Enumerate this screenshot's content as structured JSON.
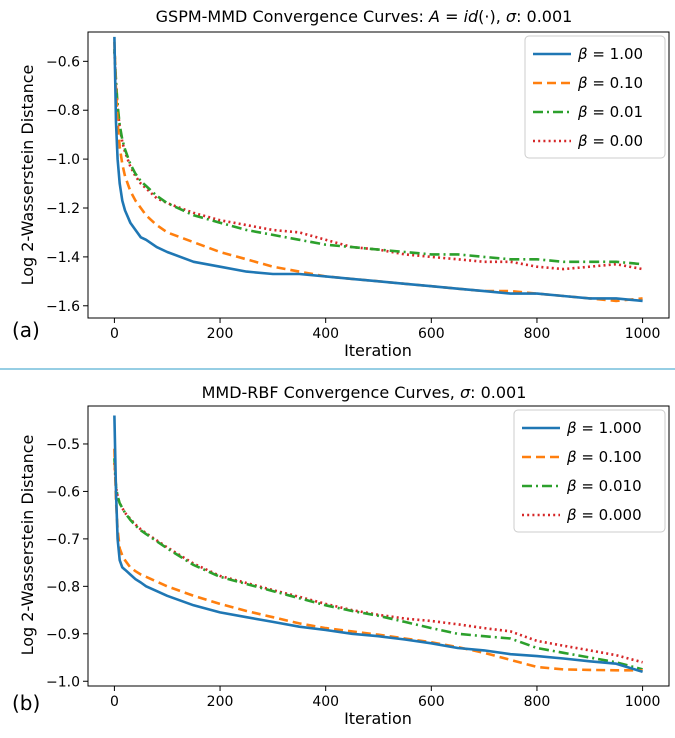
{
  "chart_data": [
    {
      "type": "line",
      "panel_label": "(a)",
      "title": "GSPM-MMD Convergence Curves: A = id(·), σ: 0.001",
      "title_parts": {
        "prefix": "GSPM-MMD Convergence Curves: ",
        "A": "A",
        "eq": " = ",
        "id": "id",
        "arg": "(·), ",
        "sigma": "σ",
        "suffix": ": 0.001"
      },
      "xlabel": "Iteration",
      "ylabel": "Log 2-Wasserstein Distance",
      "xlim": [
        -50,
        1050
      ],
      "ylim": [
        -1.65,
        -0.48
      ],
      "xticks": [
        0,
        200,
        400,
        600,
        800,
        1000
      ],
      "xtick_labels": [
        "0",
        "200",
        "400",
        "600",
        "800",
        "1000"
      ],
      "yticks": [
        -1.6,
        -1.4,
        -1.2,
        -1.0,
        -0.8,
        -0.6
      ],
      "ytick_labels": [
        "−1.6",
        "−1.4",
        "−1.2",
        "−1.0",
        "−0.8",
        "−0.6"
      ],
      "grid": false,
      "legend_position": "top-right",
      "series": [
        {
          "name": "β = 1.00",
          "legend_symbol": "β",
          "legend_value": "= 1.00",
          "color": "#1f77b4",
          "style": "solid",
          "x": [
            0,
            3,
            6,
            10,
            15,
            20,
            30,
            40,
            50,
            60,
            80,
            100,
            150,
            200,
            250,
            300,
            350,
            400,
            450,
            500,
            550,
            600,
            650,
            700,
            750,
            800,
            850,
            900,
            950,
            1000
          ],
          "y": [
            -0.5,
            -0.85,
            -1.0,
            -1.1,
            -1.17,
            -1.21,
            -1.26,
            -1.29,
            -1.32,
            -1.33,
            -1.36,
            -1.38,
            -1.42,
            -1.44,
            -1.46,
            -1.47,
            -1.47,
            -1.48,
            -1.49,
            -1.5,
            -1.51,
            -1.52,
            -1.53,
            -1.54,
            -1.55,
            -1.55,
            -1.56,
            -1.57,
            -1.57,
            -1.58
          ]
        },
        {
          "name": "β = 0.10",
          "legend_symbol": "β",
          "legend_value": "= 0.10",
          "color": "#ff7f0e",
          "style": "dashed",
          "x": [
            0,
            3,
            6,
            10,
            15,
            20,
            30,
            40,
            50,
            60,
            80,
            100,
            150,
            200,
            250,
            300,
            350,
            400,
            450,
            500,
            550,
            600,
            650,
            700,
            750,
            800,
            850,
            900,
            950,
            1000
          ],
          "y": [
            -0.52,
            -0.72,
            -0.85,
            -0.95,
            -1.02,
            -1.07,
            -1.13,
            -1.17,
            -1.2,
            -1.23,
            -1.27,
            -1.3,
            -1.34,
            -1.38,
            -1.41,
            -1.44,
            -1.46,
            -1.48,
            -1.49,
            -1.5,
            -1.51,
            -1.52,
            -1.53,
            -1.54,
            -1.54,
            -1.55,
            -1.56,
            -1.57,
            -1.58,
            -1.57
          ]
        },
        {
          "name": "β = 0.01",
          "legend_symbol": "β",
          "legend_value": "= 0.01",
          "color": "#2ca02c",
          "style": "dashdot",
          "x": [
            0,
            3,
            6,
            10,
            15,
            20,
            30,
            40,
            50,
            60,
            80,
            100,
            150,
            200,
            250,
            300,
            350,
            400,
            450,
            500,
            550,
            600,
            650,
            700,
            750,
            800,
            850,
            900,
            950,
            1000
          ],
          "y": [
            -0.55,
            -0.68,
            -0.78,
            -0.86,
            -0.92,
            -0.96,
            -1.02,
            -1.06,
            -1.09,
            -1.11,
            -1.15,
            -1.18,
            -1.23,
            -1.26,
            -1.29,
            -1.31,
            -1.33,
            -1.35,
            -1.36,
            -1.37,
            -1.38,
            -1.39,
            -1.39,
            -1.4,
            -1.41,
            -1.41,
            -1.42,
            -1.42,
            -1.42,
            -1.43
          ]
        },
        {
          "name": "β = 0.00",
          "legend_symbol": "β",
          "legend_value": "= 0.00",
          "color": "#d62728",
          "style": "dotted",
          "x": [
            0,
            3,
            6,
            10,
            15,
            20,
            30,
            40,
            50,
            60,
            80,
            100,
            150,
            200,
            250,
            300,
            350,
            400,
            450,
            500,
            550,
            600,
            650,
            700,
            750,
            800,
            850,
            900,
            950,
            1000
          ],
          "y": [
            -0.56,
            -0.69,
            -0.79,
            -0.87,
            -0.93,
            -0.97,
            -1.03,
            -1.07,
            -1.1,
            -1.12,
            -1.16,
            -1.18,
            -1.22,
            -1.25,
            -1.27,
            -1.29,
            -1.3,
            -1.33,
            -1.36,
            -1.37,
            -1.39,
            -1.4,
            -1.41,
            -1.42,
            -1.42,
            -1.44,
            -1.45,
            -1.44,
            -1.43,
            -1.45
          ]
        }
      ]
    },
    {
      "type": "line",
      "panel_label": "(b)",
      "title": "MMD-RBF Convergence Curves, σ: 0.001",
      "title_parts": {
        "prefix": "MMD-RBF Convergence Curves, ",
        "sigma": "σ",
        "suffix": ": 0.001"
      },
      "xlabel": "Iteration",
      "ylabel": "Log 2-Wasserstein Distance",
      "xlim": [
        -50,
        1050
      ],
      "ylim": [
        -1.01,
        -0.42
      ],
      "xticks": [
        0,
        200,
        400,
        600,
        800,
        1000
      ],
      "xtick_labels": [
        "0",
        "200",
        "400",
        "600",
        "800",
        "1000"
      ],
      "yticks": [
        -1.0,
        -0.9,
        -0.8,
        -0.7,
        -0.6,
        -0.5
      ],
      "ytick_labels": [
        "−1.0",
        "−0.9",
        "−0.8",
        "−0.7",
        "−0.6",
        "−0.5"
      ],
      "grid": false,
      "legend_position": "top-right",
      "series": [
        {
          "name": "β = 1.000",
          "legend_symbol": "β",
          "legend_value": "= 1.000",
          "color": "#1f77b4",
          "style": "solid",
          "x": [
            0,
            3,
            6,
            10,
            15,
            20,
            30,
            40,
            50,
            60,
            80,
            100,
            150,
            200,
            250,
            300,
            350,
            400,
            450,
            500,
            550,
            600,
            650,
            700,
            750,
            800,
            850,
            900,
            950,
            1000
          ],
          "y": [
            -0.44,
            -0.6,
            -0.7,
            -0.745,
            -0.76,
            -0.765,
            -0.775,
            -0.785,
            -0.792,
            -0.8,
            -0.81,
            -0.82,
            -0.84,
            -0.855,
            -0.865,
            -0.875,
            -0.885,
            -0.892,
            -0.9,
            -0.905,
            -0.912,
            -0.92,
            -0.93,
            -0.935,
            -0.943,
            -0.947,
            -0.952,
            -0.958,
            -0.963,
            -0.98
          ]
        },
        {
          "name": "β = 0.100",
          "legend_symbol": "β",
          "legend_value": "= 0.100",
          "color": "#ff7f0e",
          "style": "dashed",
          "x": [
            0,
            3,
            6,
            10,
            15,
            20,
            30,
            40,
            50,
            60,
            80,
            100,
            150,
            200,
            250,
            300,
            350,
            400,
            450,
            500,
            550,
            600,
            650,
            700,
            750,
            800,
            850,
            900,
            950,
            1000
          ],
          "y": [
            -0.51,
            -0.62,
            -0.68,
            -0.72,
            -0.735,
            -0.745,
            -0.76,
            -0.768,
            -0.775,
            -0.78,
            -0.79,
            -0.8,
            -0.82,
            -0.837,
            -0.852,
            -0.865,
            -0.878,
            -0.888,
            -0.895,
            -0.902,
            -0.91,
            -0.918,
            -0.928,
            -0.94,
            -0.955,
            -0.97,
            -0.975,
            -0.976,
            -0.977,
            -0.977
          ]
        },
        {
          "name": "β = 0.010",
          "legend_symbol": "β",
          "legend_value": "= 0.010",
          "color": "#2ca02c",
          "style": "dashdot",
          "x": [
            0,
            3,
            6,
            10,
            15,
            20,
            30,
            40,
            50,
            60,
            80,
            100,
            150,
            200,
            250,
            300,
            350,
            400,
            450,
            500,
            550,
            600,
            650,
            700,
            750,
            800,
            850,
            900,
            950,
            1000
          ],
          "y": [
            -0.53,
            -0.59,
            -0.61,
            -0.625,
            -0.635,
            -0.645,
            -0.66,
            -0.672,
            -0.682,
            -0.69,
            -0.705,
            -0.72,
            -0.755,
            -0.78,
            -0.795,
            -0.81,
            -0.825,
            -0.84,
            -0.852,
            -0.862,
            -0.875,
            -0.888,
            -0.9,
            -0.905,
            -0.91,
            -0.93,
            -0.94,
            -0.95,
            -0.96,
            -0.975
          ]
        },
        {
          "name": "β = 0.000",
          "legend_symbol": "β",
          "legend_value": "= 0.000",
          "color": "#d62728",
          "style": "dotted",
          "x": [
            0,
            3,
            6,
            10,
            15,
            20,
            30,
            40,
            50,
            60,
            80,
            100,
            150,
            200,
            250,
            300,
            350,
            400,
            450,
            500,
            550,
            600,
            650,
            700,
            750,
            800,
            850,
            900,
            950,
            1000
          ],
          "y": [
            -0.54,
            -0.59,
            -0.61,
            -0.625,
            -0.635,
            -0.645,
            -0.658,
            -0.67,
            -0.68,
            -0.688,
            -0.703,
            -0.718,
            -0.752,
            -0.778,
            -0.793,
            -0.808,
            -0.822,
            -0.837,
            -0.85,
            -0.86,
            -0.868,
            -0.873,
            -0.88,
            -0.888,
            -0.895,
            -0.915,
            -0.925,
            -0.935,
            -0.945,
            -0.96
          ]
        }
      ]
    }
  ],
  "divider_color": "#2e9ec8"
}
